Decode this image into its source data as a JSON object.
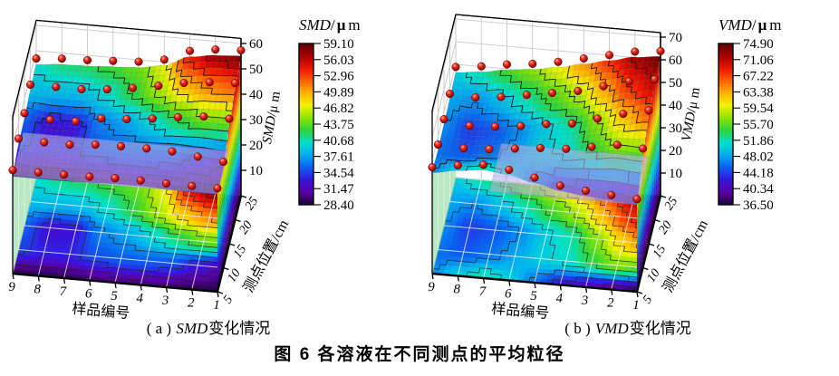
{
  "figure": {
    "main_caption": "图 6  各溶液在不同测点的平均粒径",
    "subplots": [
      {
        "prefix": "( a ) ",
        "italic": "SMD",
        "suffix": "变化情况"
      },
      {
        "prefix": "( b ) ",
        "italic": "VMD",
        "suffix": "变化情况"
      }
    ]
  },
  "chart_data": [
    {
      "type": "surface3d-with-contour-floor",
      "series_name": "SMD",
      "xlabel": "样品编号",
      "ylabel": "测点位置/cm",
      "zlabel_italic": "SMD",
      "zlabel_rest": "/μ m",
      "x_categories": [
        9,
        8,
        7,
        6,
        5,
        4,
        3,
        2,
        1
      ],
      "y_ticks": [
        5,
        10,
        15,
        20,
        25
      ],
      "z_ticks": [
        10,
        20,
        30,
        40,
        50,
        60
      ],
      "value_range": [
        28.4,
        59.1
      ],
      "colorbar": {
        "title_italic": "SMD",
        "title_slash": "/",
        "title_mu": "μ",
        "title_unit": "m",
        "tick_labels": [
          "59.10",
          "56.03",
          "52.96",
          "49.89",
          "46.82",
          "43.75",
          "40.68",
          "37.61",
          "34.54",
          "31.47",
          "28.40"
        ]
      },
      "grid": {
        "y_positions": [
          5,
          10,
          15,
          20,
          25
        ],
        "x_samples": [
          1,
          2,
          3,
          4,
          5,
          6,
          7,
          8,
          9
        ],
        "values": [
          [
            29.0,
            29.0,
            29.5,
            30.0,
            30.0,
            29.5,
            29.0,
            29.0,
            29.0
          ],
          [
            31.0,
            33.0,
            35.0,
            35.5,
            35.5,
            35.0,
            33.5,
            33.5,
            34.5
          ],
          [
            44.0,
            44.0,
            42.0,
            39.5,
            37.5,
            36.5,
            33.0,
            32.5,
            35.5
          ],
          [
            52.0,
            51.0,
            49.0,
            45.5,
            42.5,
            40.0,
            38.5,
            38.5,
            38.5
          ],
          [
            58.0,
            57.0,
            54.5,
            47.0,
            44.0,
            43.0,
            42.0,
            41.5,
            40.0
          ]
        ]
      }
    },
    {
      "type": "surface3d-with-contour-floor",
      "series_name": "VMD",
      "xlabel": "样品编号",
      "ylabel": "测点位置/cm",
      "zlabel_italic": "VMD",
      "zlabel_rest": "/μ m",
      "x_categories": [
        9,
        8,
        7,
        6,
        5,
        4,
        3,
        2,
        1
      ],
      "y_ticks": [
        5,
        10,
        15,
        20,
        25
      ],
      "z_ticks": [
        10,
        20,
        30,
        40,
        50,
        60,
        70
      ],
      "value_range": [
        36.5,
        74.9
      ],
      "colorbar": {
        "title_italic": "VMD",
        "title_slash": "/",
        "title_mu": "μ",
        "title_unit": "m",
        "tick_labels": [
          "74.90",
          "71.06",
          "67.22",
          "63.38",
          "59.54",
          "55.70",
          "51.86",
          "48.02",
          "44.18",
          "40.34",
          "36.50"
        ]
      },
      "grid": {
        "y_positions": [
          5,
          10,
          15,
          20,
          25
        ],
        "x_samples": [
          1,
          2,
          3,
          4,
          5,
          6,
          7,
          8,
          9
        ],
        "values": [
          [
            37.0,
            38.5,
            40.0,
            42.0,
            46.0,
            50.0,
            52.0,
            50.0,
            47.0
          ],
          [
            56.0,
            57.0,
            54.0,
            51.0,
            50.0,
            48.0,
            46.0,
            45.0,
            46.0
          ],
          [
            66.0,
            62.0,
            57.0,
            52.0,
            50.0,
            47.0,
            45.0,
            44.0,
            47.0
          ],
          [
            71.0,
            68.0,
            63.0,
            58.0,
            55.0,
            52.0,
            49.0,
            47.0,
            48.0
          ],
          [
            74.0,
            72.0,
            68.0,
            64.0,
            60.0,
            57.0,
            55.0,
            52.0,
            50.0
          ]
        ]
      }
    }
  ],
  "style": {
    "colormap": [
      "#1d0136",
      "#5a00a8",
      "#3714dc",
      "#0b5ef0",
      "#00aef0",
      "#00e0cc",
      "#2ed43c",
      "#8ce400",
      "#f2f200",
      "#ffb400",
      "#ff6000",
      "#ee1400",
      "#a80000",
      "#5c0000"
    ],
    "plane_color": "#b6b2e6",
    "skirt_color": "#b7e7bf",
    "sphere_color": "#cc1111",
    "wall_grid_color": "#c9c9c9",
    "contour_color": "#222222",
    "frame_color": "#000000"
  }
}
